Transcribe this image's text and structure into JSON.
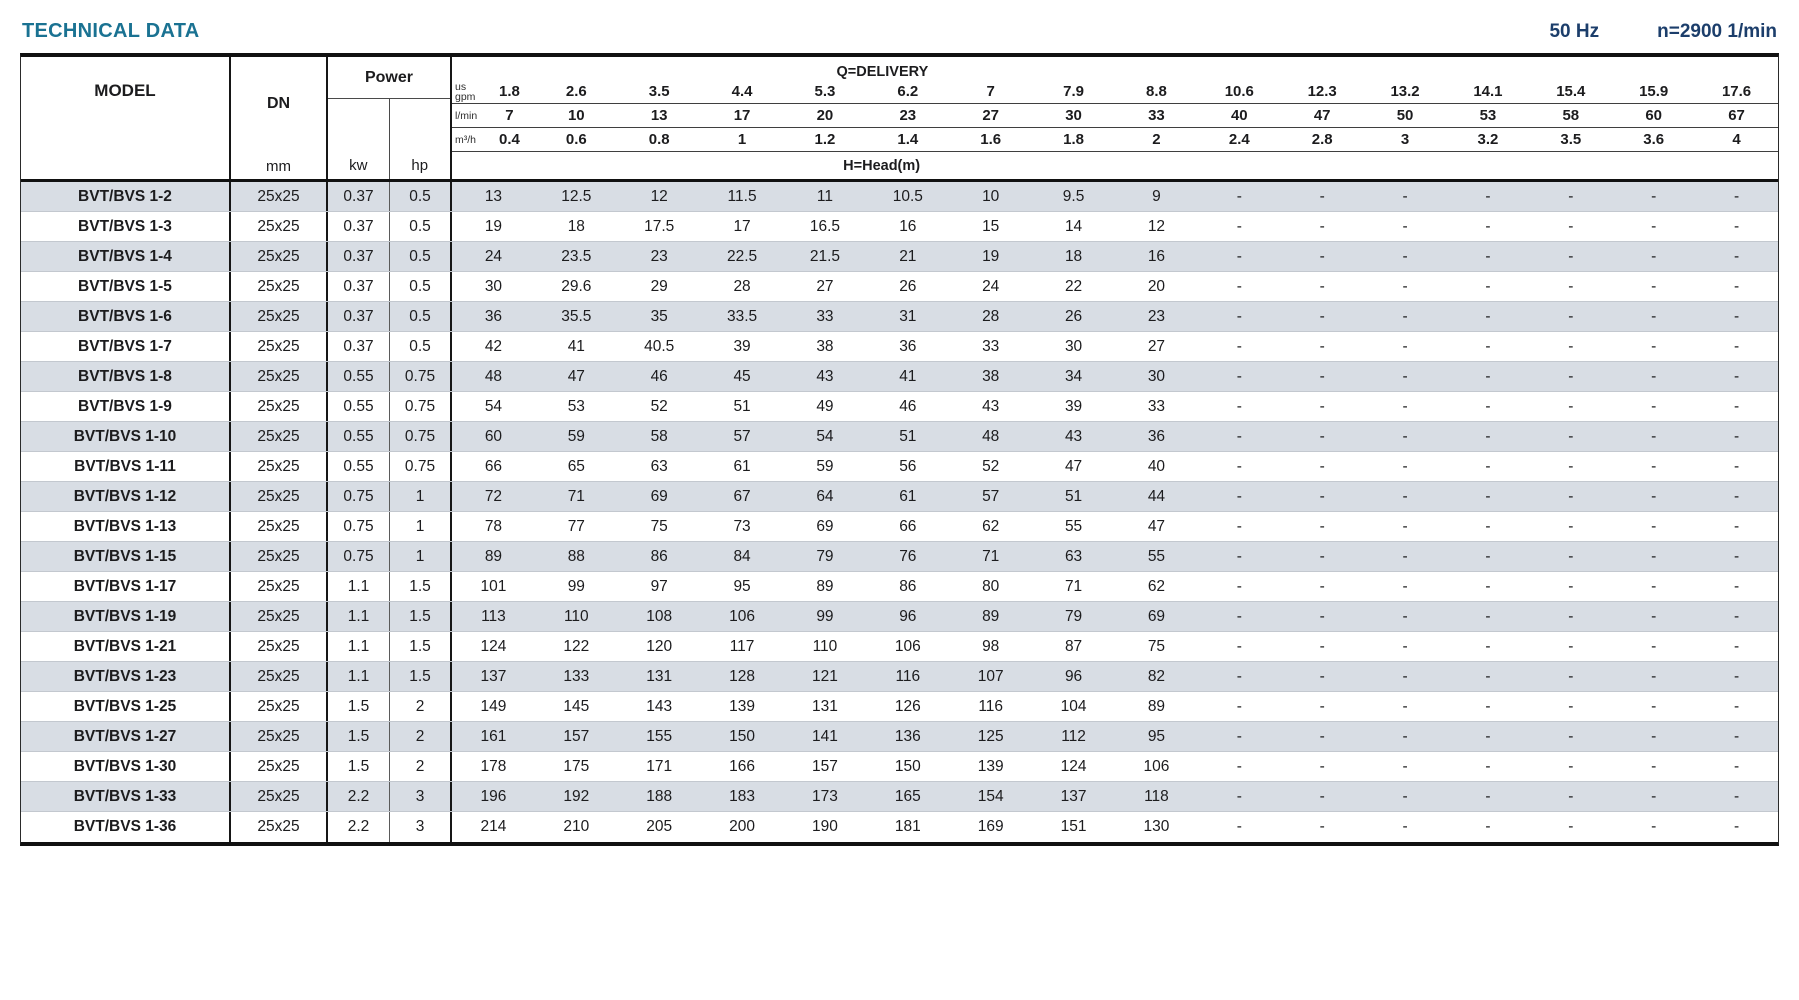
{
  "page": {
    "title": "TECHNICAL DATA",
    "frequency": "50 Hz",
    "speed": "n=2900 1/min"
  },
  "colors": {
    "title": "#1a7292",
    "accent": "#1c3e6b",
    "row_shade": "#d8dde4"
  },
  "table": {
    "headers": {
      "model": "MODEL",
      "dn": "DN",
      "dn_unit": "mm",
      "power": "Power",
      "power_units": [
        "kw",
        "hp"
      ],
      "delivery_title": "Q=DELIVERY",
      "head_title": "H=Head(m)",
      "unit_rows": [
        {
          "label_lines": [
            "us",
            "gpm"
          ],
          "values": [
            "1.8",
            "2.6",
            "3.5",
            "4.4",
            "5.3",
            "6.2",
            "7",
            "7.9",
            "8.8",
            "10.6",
            "12.3",
            "13.2",
            "14.1",
            "15.4",
            "15.9",
            "17.6"
          ]
        },
        {
          "label_lines": [
            "l/min"
          ],
          "values": [
            "7",
            "10",
            "13",
            "17",
            "20",
            "23",
            "27",
            "30",
            "33",
            "40",
            "47",
            "50",
            "53",
            "58",
            "60",
            "67"
          ]
        },
        {
          "label_lines": [
            "m³/h"
          ],
          "values": [
            "0.4",
            "0.6",
            "0.8",
            "1",
            "1.2",
            "1.4",
            "1.6",
            "1.8",
            "2",
            "2.4",
            "2.8",
            "3",
            "3.2",
            "3.5",
            "3.6",
            "4"
          ]
        }
      ]
    },
    "rows": [
      {
        "model": "BVT/BVS 1-2",
        "dn": "25x25",
        "kw": "0.37",
        "hp": "0.5",
        "head": [
          "13",
          "12.5",
          "12",
          "11.5",
          "11",
          "10.5",
          "10",
          "9.5",
          "9",
          "-",
          "-",
          "-",
          "-",
          "-",
          "-",
          "-"
        ]
      },
      {
        "model": "BVT/BVS 1-3",
        "dn": "25x25",
        "kw": "0.37",
        "hp": "0.5",
        "head": [
          "19",
          "18",
          "17.5",
          "17",
          "16.5",
          "16",
          "15",
          "14",
          "12",
          "-",
          "-",
          "-",
          "-",
          "-",
          "-",
          "-"
        ]
      },
      {
        "model": "BVT/BVS 1-4",
        "dn": "25x25",
        "kw": "0.37",
        "hp": "0.5",
        "head": [
          "24",
          "23.5",
          "23",
          "22.5",
          "21.5",
          "21",
          "19",
          "18",
          "16",
          "-",
          "-",
          "-",
          "-",
          "-",
          "-",
          "-"
        ]
      },
      {
        "model": "BVT/BVS 1-5",
        "dn": "25x25",
        "kw": "0.37",
        "hp": "0.5",
        "head": [
          "30",
          "29.6",
          "29",
          "28",
          "27",
          "26",
          "24",
          "22",
          "20",
          "-",
          "-",
          "-",
          "-",
          "-",
          "-",
          "-"
        ]
      },
      {
        "model": "BVT/BVS 1-6",
        "dn": "25x25",
        "kw": "0.37",
        "hp": "0.5",
        "head": [
          "36",
          "35.5",
          "35",
          "33.5",
          "33",
          "31",
          "28",
          "26",
          "23",
          "-",
          "-",
          "-",
          "-",
          "-",
          "-",
          "-"
        ]
      },
      {
        "model": "BVT/BVS 1-7",
        "dn": "25x25",
        "kw": "0.37",
        "hp": "0.5",
        "head": [
          "42",
          "41",
          "40.5",
          "39",
          "38",
          "36",
          "33",
          "30",
          "27",
          "-",
          "-",
          "-",
          "-",
          "-",
          "-",
          "-"
        ]
      },
      {
        "model": "BVT/BVS 1-8",
        "dn": "25x25",
        "kw": "0.55",
        "hp": "0.75",
        "head": [
          "48",
          "47",
          "46",
          "45",
          "43",
          "41",
          "38",
          "34",
          "30",
          "-",
          "-",
          "-",
          "-",
          "-",
          "-",
          "-"
        ]
      },
      {
        "model": "BVT/BVS 1-9",
        "dn": "25x25",
        "kw": "0.55",
        "hp": "0.75",
        "head": [
          "54",
          "53",
          "52",
          "51",
          "49",
          "46",
          "43",
          "39",
          "33",
          "-",
          "-",
          "-",
          "-",
          "-",
          "-",
          "-"
        ]
      },
      {
        "model": "BVT/BVS 1-10",
        "dn": "25x25",
        "kw": "0.55",
        "hp": "0.75",
        "head": [
          "60",
          "59",
          "58",
          "57",
          "54",
          "51",
          "48",
          "43",
          "36",
          "-",
          "-",
          "-",
          "-",
          "-",
          "-",
          "-"
        ]
      },
      {
        "model": "BVT/BVS 1-11",
        "dn": "25x25",
        "kw": "0.55",
        "hp": "0.75",
        "head": [
          "66",
          "65",
          "63",
          "61",
          "59",
          "56",
          "52",
          "47",
          "40",
          "-",
          "-",
          "-",
          "-",
          "-",
          "-",
          "-"
        ]
      },
      {
        "model": "BVT/BVS 1-12",
        "dn": "25x25",
        "kw": "0.75",
        "hp": "1",
        "head": [
          "72",
          "71",
          "69",
          "67",
          "64",
          "61",
          "57",
          "51",
          "44",
          "-",
          "-",
          "-",
          "-",
          "-",
          "-",
          "-"
        ]
      },
      {
        "model": "BVT/BVS 1-13",
        "dn": "25x25",
        "kw": "0.75",
        "hp": "1",
        "head": [
          "78",
          "77",
          "75",
          "73",
          "69",
          "66",
          "62",
          "55",
          "47",
          "-",
          "-",
          "-",
          "-",
          "-",
          "-",
          "-"
        ]
      },
      {
        "model": "BVT/BVS 1-15",
        "dn": "25x25",
        "kw": "0.75",
        "hp": "1",
        "head": [
          "89",
          "88",
          "86",
          "84",
          "79",
          "76",
          "71",
          "63",
          "55",
          "-",
          "-",
          "-",
          "-",
          "-",
          "-",
          "-"
        ]
      },
      {
        "model": "BVT/BVS 1-17",
        "dn": "25x25",
        "kw": "1.1",
        "hp": "1.5",
        "head": [
          "101",
          "99",
          "97",
          "95",
          "89",
          "86",
          "80",
          "71",
          "62",
          "-",
          "-",
          "-",
          "-",
          "-",
          "-",
          "-"
        ]
      },
      {
        "model": "BVT/BVS 1-19",
        "dn": "25x25",
        "kw": "1.1",
        "hp": "1.5",
        "head": [
          "113",
          "110",
          "108",
          "106",
          "99",
          "96",
          "89",
          "79",
          "69",
          "-",
          "-",
          "-",
          "-",
          "-",
          "-",
          "-"
        ]
      },
      {
        "model": "BVT/BVS 1-21",
        "dn": "25x25",
        "kw": "1.1",
        "hp": "1.5",
        "head": [
          "124",
          "122",
          "120",
          "117",
          "110",
          "106",
          "98",
          "87",
          "75",
          "-",
          "-",
          "-",
          "-",
          "-",
          "-",
          "-"
        ]
      },
      {
        "model": "BVT/BVS 1-23",
        "dn": "25x25",
        "kw": "1.1",
        "hp": "1.5",
        "head": [
          "137",
          "133",
          "131",
          "128",
          "121",
          "116",
          "107",
          "96",
          "82",
          "-",
          "-",
          "-",
          "-",
          "-",
          "-",
          "-"
        ]
      },
      {
        "model": "BVT/BVS 1-25",
        "dn": "25x25",
        "kw": "1.5",
        "hp": "2",
        "head": [
          "149",
          "145",
          "143",
          "139",
          "131",
          "126",
          "116",
          "104",
          "89",
          "-",
          "-",
          "-",
          "-",
          "-",
          "-",
          "-"
        ]
      },
      {
        "model": "BVT/BVS 1-27",
        "dn": "25x25",
        "kw": "1.5",
        "hp": "2",
        "head": [
          "161",
          "157",
          "155",
          "150",
          "141",
          "136",
          "125",
          "112",
          "95",
          "-",
          "-",
          "-",
          "-",
          "-",
          "-",
          "-"
        ]
      },
      {
        "model": "BVT/BVS 1-30",
        "dn": "25x25",
        "kw": "1.5",
        "hp": "2",
        "head": [
          "178",
          "175",
          "171",
          "166",
          "157",
          "150",
          "139",
          "124",
          "106",
          "-",
          "-",
          "-",
          "-",
          "-",
          "-",
          "-"
        ]
      },
      {
        "model": "BVT/BVS 1-33",
        "dn": "25x25",
        "kw": "2.2",
        "hp": "3",
        "head": [
          "196",
          "192",
          "188",
          "183",
          "173",
          "165",
          "154",
          "137",
          "118",
          "-",
          "-",
          "-",
          "-",
          "-",
          "-",
          "-"
        ]
      },
      {
        "model": "BVT/BVS 1-36",
        "dn": "25x25",
        "kw": "2.2",
        "hp": "3",
        "head": [
          "214",
          "210",
          "205",
          "200",
          "190",
          "181",
          "169",
          "151",
          "130",
          "-",
          "-",
          "-",
          "-",
          "-",
          "-",
          "-"
        ]
      }
    ]
  }
}
